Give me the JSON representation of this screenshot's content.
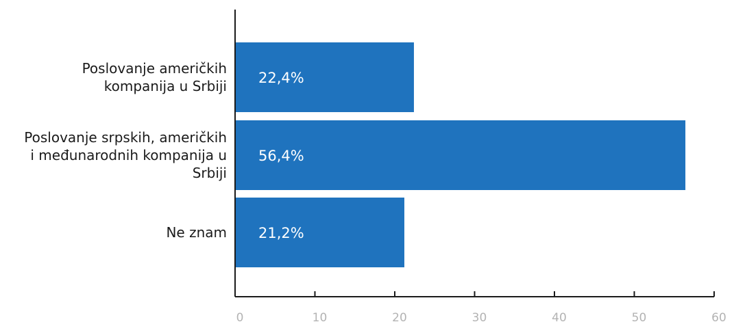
{
  "chart_data": {
    "type": "bar",
    "orientation": "horizontal",
    "categories": [
      [
        "Poslovanje američkih",
        "kompanija u Srbiji"
      ],
      [
        "Poslovanje srpskih, američkih",
        "i međunarodnih kompanija u",
        "Srbiji"
      ],
      [
        "Ne znam"
      ]
    ],
    "values": [
      22.4,
      56.4,
      21.2
    ],
    "value_labels": [
      "22,4%",
      "56,4%",
      "21,2%"
    ],
    "xlim": [
      0,
      60
    ],
    "xticks": [
      0,
      10,
      20,
      30,
      40,
      50,
      60
    ],
    "xtick_labels": [
      "0",
      "10",
      "20",
      "30",
      "40",
      "50",
      "60"
    ],
    "grid": false,
    "legend": "none",
    "bar_color": "#1f73be",
    "axis_color": "#1a1a1a",
    "tick_label_color": "#b3b3b3",
    "title": "",
    "xlabel": "",
    "ylabel": ""
  }
}
